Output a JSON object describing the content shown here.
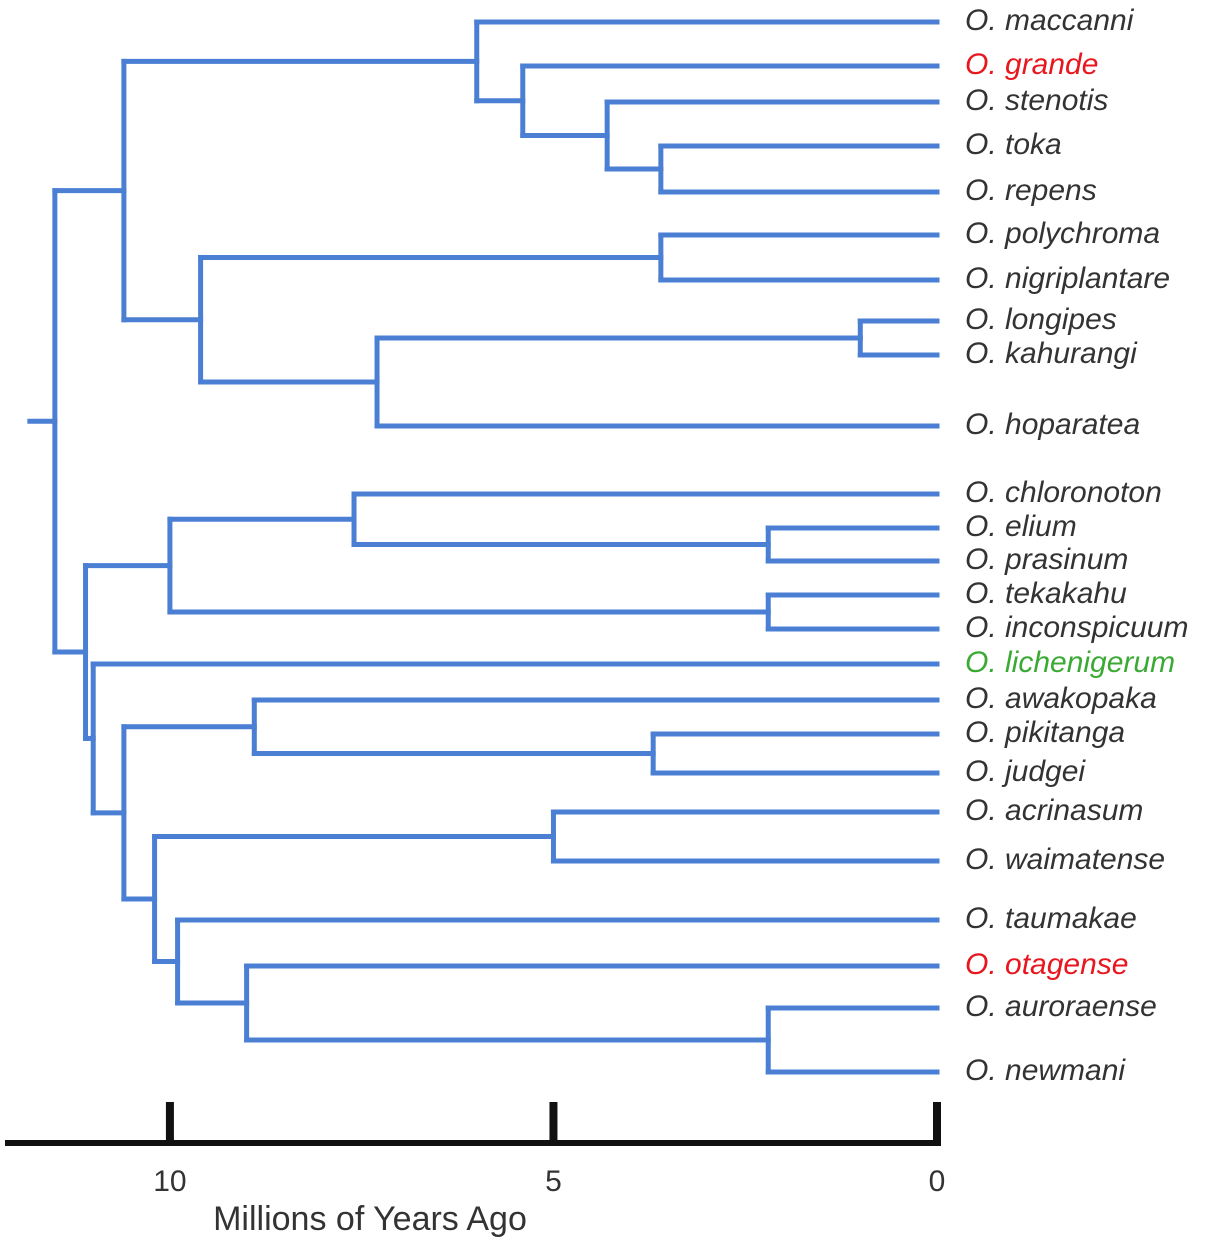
{
  "tree": {
    "age": 11.5,
    "children": [
      {
        "age": 10.6,
        "children": [
          {
            "age": 6.0,
            "children": [
              {
                "label": "O. maccanni",
                "color": "#333333"
              },
              {
                "age": 5.4,
                "children": [
                  {
                    "label": "O. grande",
                    "color": "#e8161e"
                  },
                  {
                    "age": 4.3,
                    "children": [
                      {
                        "label": "O. stenotis",
                        "color": "#333333"
                      },
                      {
                        "age": 3.6,
                        "children": [
                          {
                            "label": "O. toka",
                            "color": "#333333"
                          },
                          {
                            "label": "O. repens",
                            "color": "#333333"
                          }
                        ]
                      }
                    ]
                  }
                ]
              }
            ]
          },
          {
            "age": 9.6,
            "children": [
              {
                "age": 3.6,
                "children": [
                  {
                    "label": "O. polychroma",
                    "color": "#333333"
                  },
                  {
                    "label": "O. nigriplantare",
                    "color": "#333333"
                  }
                ]
              },
              {
                "age": 7.3,
                "children": [
                  {
                    "age": 1.0,
                    "children": [
                      {
                        "label": "O. longipes",
                        "color": "#333333"
                      },
                      {
                        "label": "O. kahurangi",
                        "color": "#333333"
                      }
                    ]
                  },
                  {
                    "label": "O. hoparatea",
                    "color": "#333333"
                  }
                ]
              }
            ]
          }
        ]
      },
      {
        "age": 11.1,
        "children": [
          {
            "age": 10.0,
            "children": [
              {
                "age": 7.6,
                "children": [
                  {
                    "label": "O. chloronoton",
                    "color": "#333333"
                  },
                  {
                    "age": 2.2,
                    "children": [
                      {
                        "label": "O. elium",
                        "color": "#333333"
                      },
                      {
                        "label": "O. prasinum",
                        "color": "#333333"
                      }
                    ]
                  }
                ]
              },
              {
                "age": 2.2,
                "children": [
                  {
                    "label": "O. tekakahu",
                    "color": "#333333"
                  },
                  {
                    "label": "O. inconspicuum",
                    "color": "#333333"
                  }
                ]
              }
            ]
          },
          {
            "age": 11.0,
            "children": [
              {
                "label": "O. lichenigerum",
                "color": "#3aaa35"
              },
              {
                "age": 10.6,
                "children": [
                  {
                    "age": 8.9,
                    "children": [
                      {
                        "label": "O. awakopaka",
                        "color": "#333333"
                      },
                      {
                        "age": 3.7,
                        "children": [
                          {
                            "label": "O. pikitanga",
                            "color": "#333333"
                          },
                          {
                            "label": "O. judgei",
                            "color": "#333333"
                          }
                        ]
                      }
                    ]
                  },
                  {
                    "age": 10.2,
                    "children": [
                      {
                        "age": 5.0,
                        "children": [
                          {
                            "label": "O. acrinasum",
                            "color": "#333333"
                          },
                          {
                            "label": "O. waimatense",
                            "color": "#333333"
                          }
                        ]
                      },
                      {
                        "age": 9.9,
                        "children": [
                          {
                            "label": "O. taumakae",
                            "color": "#333333"
                          },
                          {
                            "age": 9.0,
                            "children": [
                              {
                                "label": "O. otagense",
                                "color": "#e8161e"
                              },
                              {
                                "age": 2.2,
                                "children": [
                                  {
                                    "label": "O. auroraense",
                                    "color": "#333333"
                                  },
                                  {
                                    "label": "O. newmani",
                                    "color": "#333333"
                                  }
                                ]
                              }
                            ]
                          }
                        ]
                      }
                    ]
                  }
                ]
              }
            ]
          }
        ]
      }
    ]
  },
  "axis": {
    "label": "Millions of Years Ago",
    "xlim": [
      12.15,
      0
    ],
    "xticks": [
      10,
      5,
      0
    ]
  }
}
